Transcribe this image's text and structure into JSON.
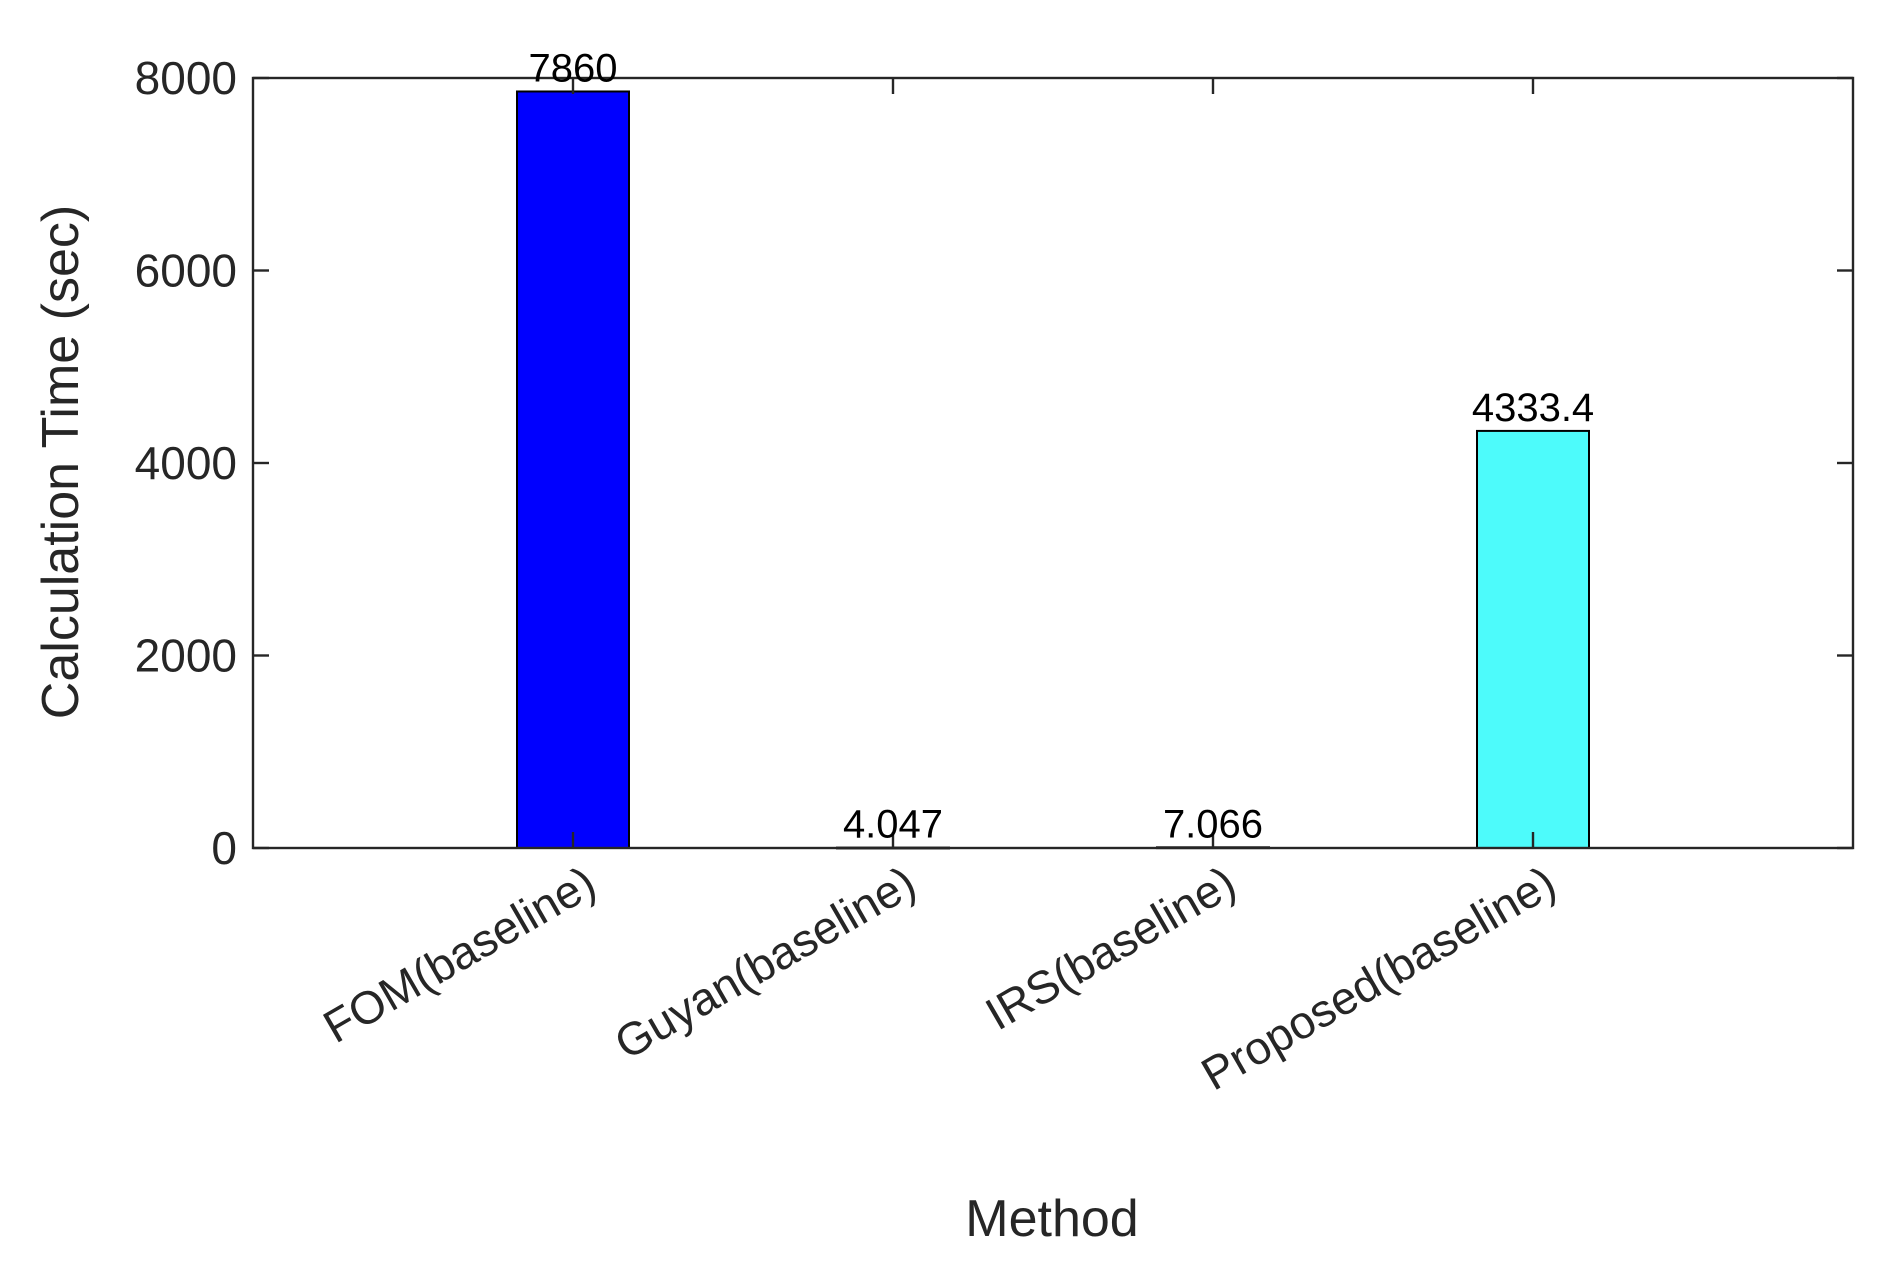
{
  "chart_data": {
    "type": "bar",
    "categories": [
      "FOM(baseline)",
      "Guyan(baseline)",
      "IRS(baseline)",
      "Proposed(baseline)"
    ],
    "values": [
      7860,
      4.047,
      7.066,
      4333.4
    ],
    "data_labels": [
      "7860",
      "4.047",
      "7.066",
      "4333.4"
    ],
    "bar_colors": [
      "#0000ff",
      "#0000ff",
      "#0000ff",
      "#4dfbfb"
    ],
    "title": "",
    "xlabel": "Method",
    "ylabel": "Calculation Time (sec)",
    "ylim": [
      0,
      8000
    ],
    "yticks": [
      0,
      2000,
      4000,
      6000,
      8000
    ],
    "ytick_labels": [
      "0",
      "2000",
      "4000",
      "6000",
      "8000"
    ],
    "grid": false,
    "box": true,
    "legend": "none"
  }
}
